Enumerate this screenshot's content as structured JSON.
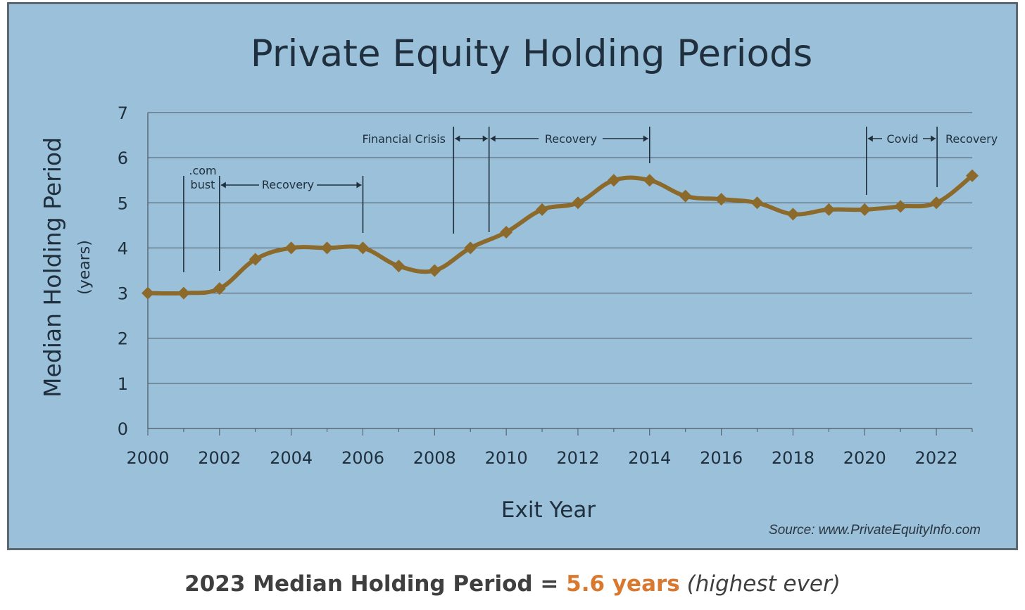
{
  "colors": {
    "panel_background": "#9bc0d9",
    "panel_border": "#5b6771",
    "line": "#8b6a2b",
    "text": "#1f2f3d",
    "gridline": "#4a5560",
    "caption_text": "#3f3f3f",
    "caption_accent": "#d9782f"
  },
  "chart_data": {
    "type": "line",
    "title": "Private Equity Holding Periods",
    "xlabel": "Exit Year",
    "ylabel": "Median Holding Period",
    "ylabel_sub": "(years)",
    "xlim": [
      2000,
      2023
    ],
    "ylim": [
      0,
      7
    ],
    "x_ticks": [
      2000,
      2002,
      2004,
      2006,
      2008,
      2010,
      2012,
      2014,
      2016,
      2018,
      2020,
      2022
    ],
    "y_ticks": [
      0,
      1,
      2,
      3,
      4,
      5,
      6,
      7
    ],
    "grid": true,
    "legend": "none",
    "marker": "diamond",
    "series": [
      {
        "x": [
          2000,
          2001,
          2002,
          2003,
          2004,
          2005,
          2006,
          2007,
          2008,
          2009,
          2010,
          2011,
          2012,
          2013,
          2014,
          2015,
          2016,
          2017,
          2018,
          2019,
          2020,
          2021,
          2022,
          2023
        ],
        "values": [
          3.0,
          3.0,
          3.1,
          3.75,
          4.0,
          4.0,
          4.0,
          3.6,
          3.5,
          4.0,
          4.35,
          4.85,
          5.0,
          5.5,
          5.5,
          5.15,
          5.08,
          5.0,
          4.75,
          4.85,
          4.85,
          4.92,
          5.0,
          5.6
        ]
      }
    ],
    "annotations": {
      "dotcom": {
        "line1": ".com",
        "line2": "bust"
      },
      "recovery_2002_2006": "Recovery",
      "financial_crisis": "Financial Crisis",
      "recovery_2009_2014": "Recovery",
      "covid": "Covid",
      "recovery_2022": "Recovery"
    },
    "source": "Source: www.PrivateEquityInfo.com"
  },
  "caption": {
    "lead": "2023 Median Holding Period",
    "equals": " = ",
    "value": "5.6 years",
    "note": " (highest ever)"
  }
}
